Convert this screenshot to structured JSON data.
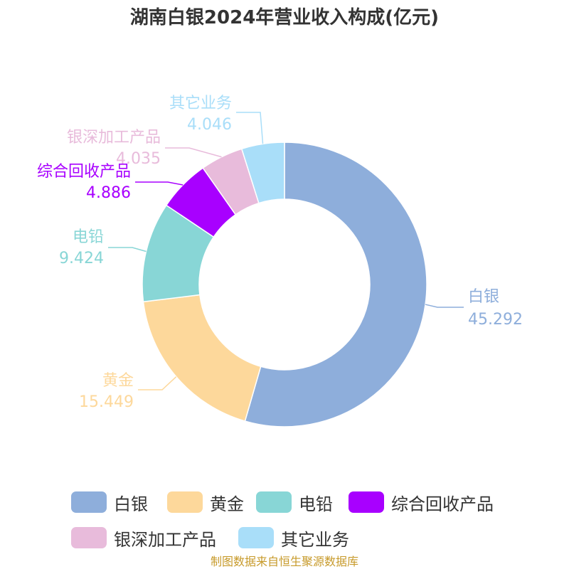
{
  "chart_data": {
    "type": "pie",
    "title": "湖南白银2024年营业收入构成(亿元)",
    "donut": true,
    "categories": [
      "白银",
      "黄金",
      "电铅",
      "综合回收产品",
      "银深加工产品",
      "其它业务"
    ],
    "values": [
      45.292,
      15.449,
      9.424,
      4.886,
      4.035,
      4.046
    ],
    "value_labels": [
      "45.292",
      "15.449",
      "9.424",
      "4.886",
      "4.035",
      "4.046"
    ],
    "colors": [
      "#8eaedb",
      "#fdd89b",
      "#88d6d6",
      "#a800ff",
      "#e8bbdb",
      "#a9def9"
    ],
    "legend_position": "bottom"
  },
  "source": "制图数据来自恒生聚源数据库"
}
